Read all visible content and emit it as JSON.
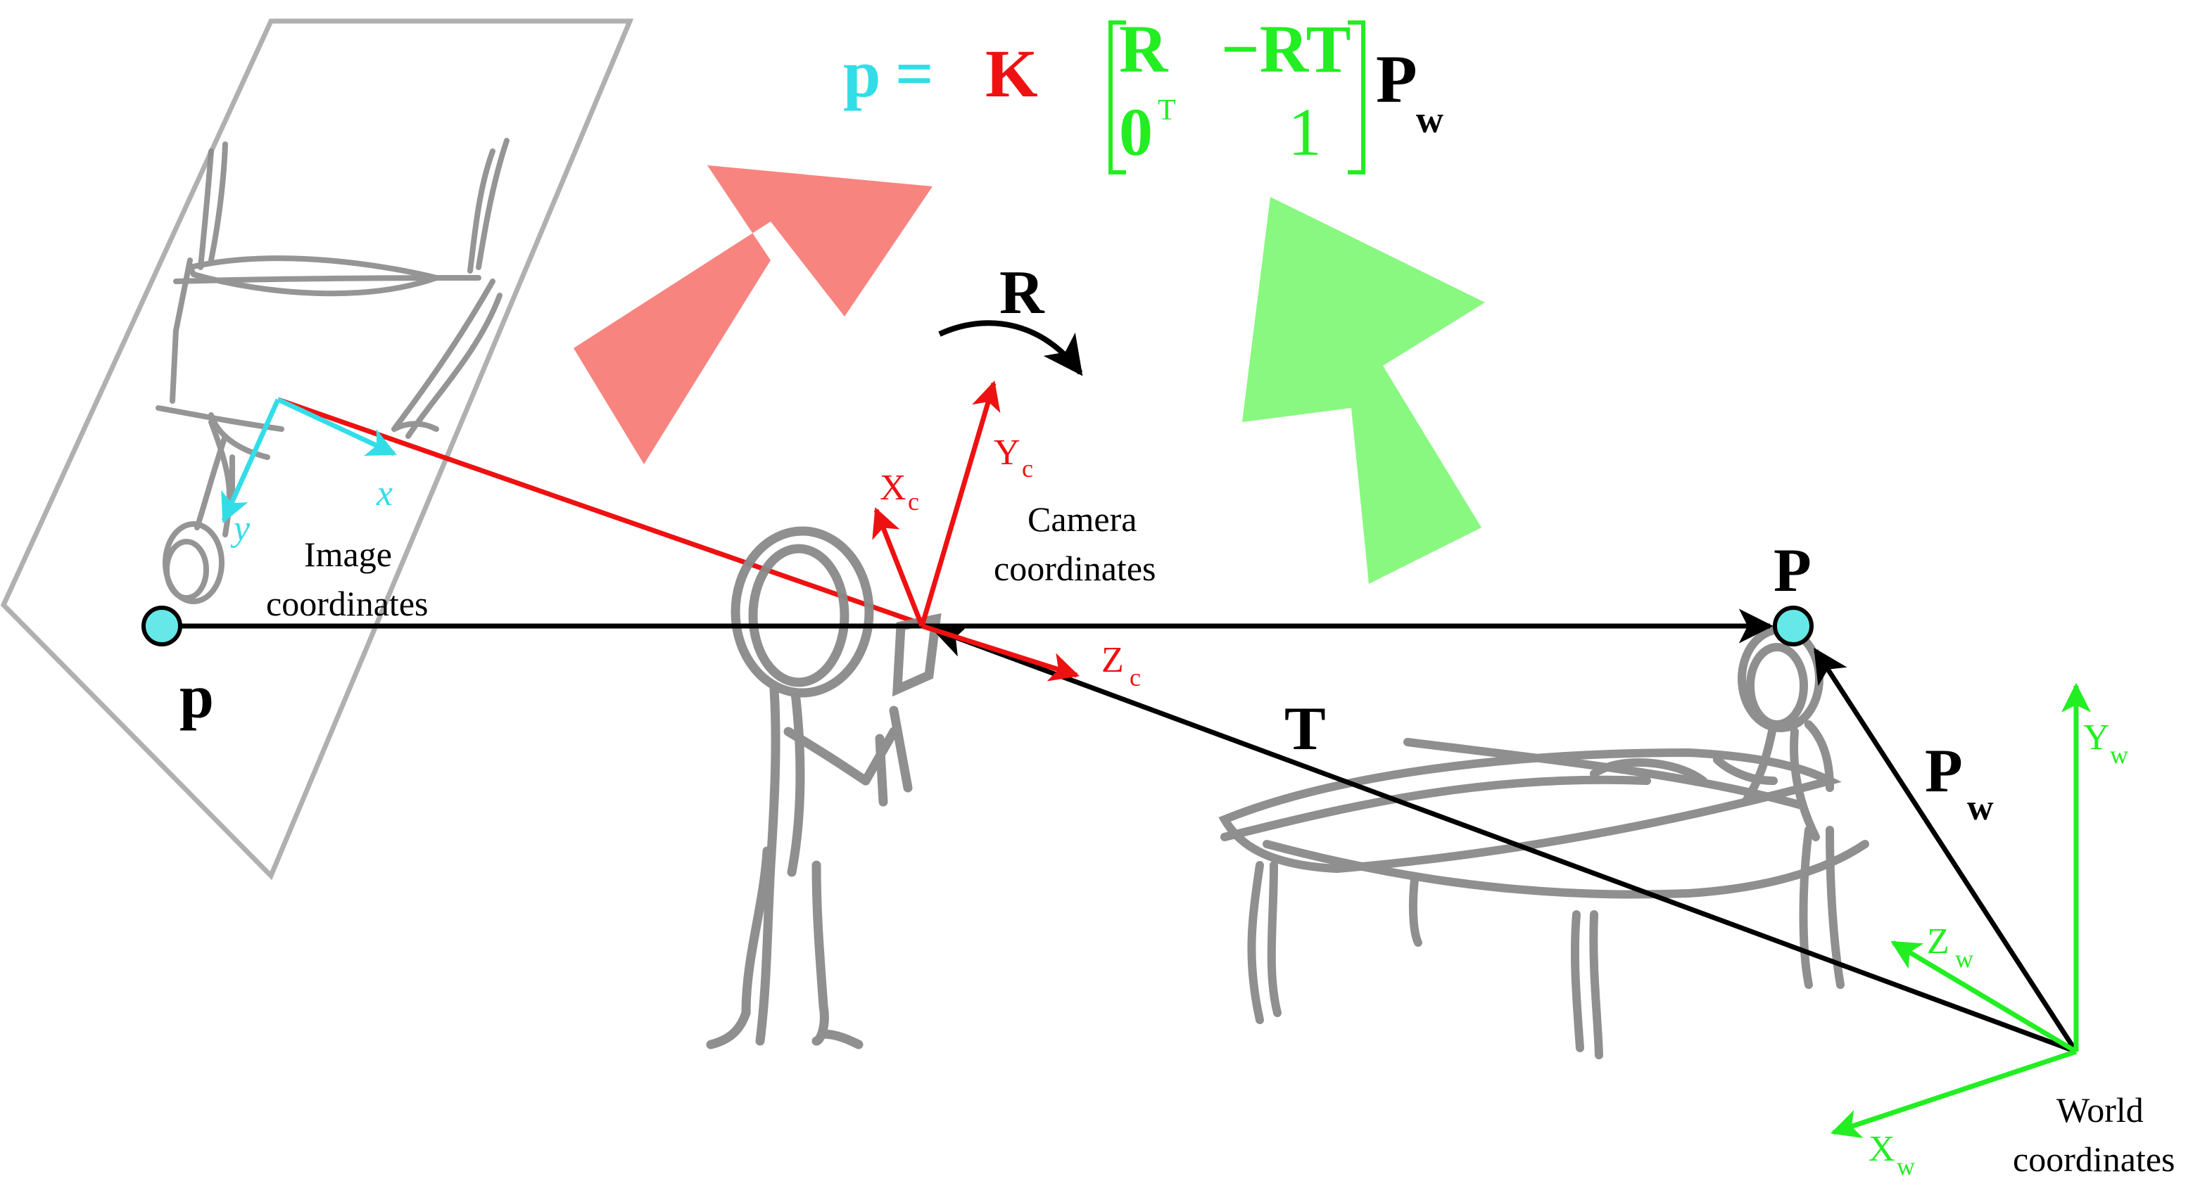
{
  "equation": {
    "lhs": "p",
    "eq": "=",
    "K": "K",
    "m11": "R",
    "m12": "−RT",
    "m21": "0",
    "m21_sup": "T",
    "m22": "1",
    "rhs": "P",
    "rhs_sub": "w"
  },
  "labels": {
    "image_coordinates_line1": "Image",
    "image_coordinates_line2": "coordinates",
    "camera_coordinates_line1": "Camera",
    "camera_coordinates_line2": "coordinates",
    "world_coordinates_line1": "World",
    "world_coordinates_line2": "coordinates",
    "image_point": "p",
    "world_point": "P",
    "translation": "T",
    "rotation": "R",
    "world_vector": "P",
    "world_vector_sub": "w"
  },
  "axes": {
    "image_x": "x",
    "image_y": "y",
    "camera_x": "X",
    "camera_x_sub": "c",
    "camera_y": "Y",
    "camera_y_sub": "c",
    "camera_z": "Z",
    "camera_z_sub": "c",
    "world_x": "X",
    "world_x_sub": "w",
    "world_y": "Y",
    "world_y_sub": "w",
    "world_z": "Z",
    "world_z_sub": "w"
  },
  "colors": {
    "image": "#33dde8",
    "camera": "#ee1111",
    "world": "#22ee22",
    "arrow_red": "#f88480",
    "arrow_green": "#88f880",
    "sketch": "#8a8a8a",
    "plane": "#b0b0b0",
    "ink": "#000000"
  }
}
